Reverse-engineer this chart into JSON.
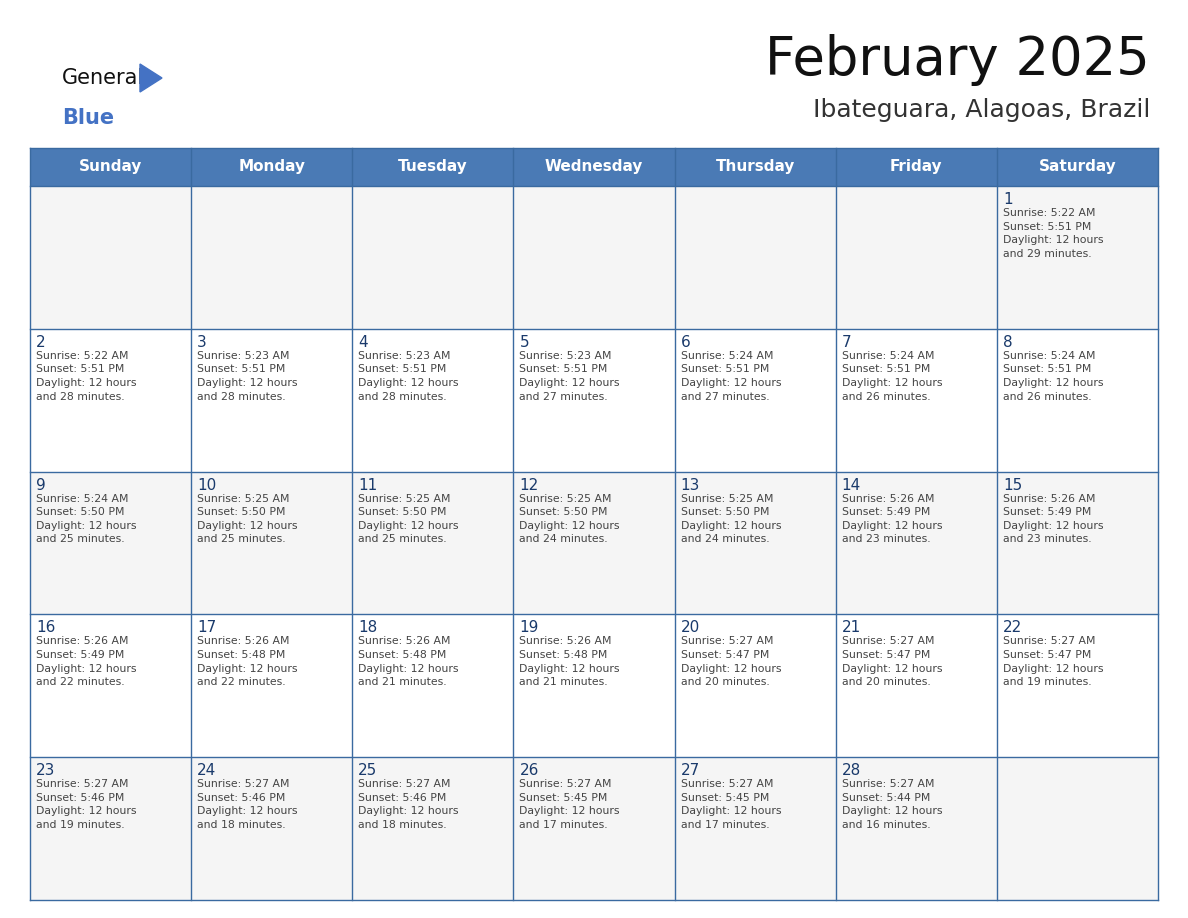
{
  "title": "February 2025",
  "subtitle": "Ibateguara, Alagoas, Brazil",
  "days_of_week": [
    "Sunday",
    "Monday",
    "Tuesday",
    "Wednesday",
    "Thursday",
    "Friday",
    "Saturday"
  ],
  "header_bg": "#4a7ab5",
  "header_text": "#FFFFFF",
  "cell_bg_odd": "#f5f5f5",
  "cell_bg_even": "#ffffff",
  "cell_text": "#333333",
  "day_number_color": "#1a3a6b",
  "border_color": "#3a6aa0",
  "title_color": "#111111",
  "subtitle_color": "#333333",
  "weeks": [
    [
      {
        "day": null,
        "info": null
      },
      {
        "day": null,
        "info": null
      },
      {
        "day": null,
        "info": null
      },
      {
        "day": null,
        "info": null
      },
      {
        "day": null,
        "info": null
      },
      {
        "day": null,
        "info": null
      },
      {
        "day": 1,
        "info": "Sunrise: 5:22 AM\nSunset: 5:51 PM\nDaylight: 12 hours\nand 29 minutes."
      }
    ],
    [
      {
        "day": 2,
        "info": "Sunrise: 5:22 AM\nSunset: 5:51 PM\nDaylight: 12 hours\nand 28 minutes."
      },
      {
        "day": 3,
        "info": "Sunrise: 5:23 AM\nSunset: 5:51 PM\nDaylight: 12 hours\nand 28 minutes."
      },
      {
        "day": 4,
        "info": "Sunrise: 5:23 AM\nSunset: 5:51 PM\nDaylight: 12 hours\nand 28 minutes."
      },
      {
        "day": 5,
        "info": "Sunrise: 5:23 AM\nSunset: 5:51 PM\nDaylight: 12 hours\nand 27 minutes."
      },
      {
        "day": 6,
        "info": "Sunrise: 5:24 AM\nSunset: 5:51 PM\nDaylight: 12 hours\nand 27 minutes."
      },
      {
        "day": 7,
        "info": "Sunrise: 5:24 AM\nSunset: 5:51 PM\nDaylight: 12 hours\nand 26 minutes."
      },
      {
        "day": 8,
        "info": "Sunrise: 5:24 AM\nSunset: 5:51 PM\nDaylight: 12 hours\nand 26 minutes."
      }
    ],
    [
      {
        "day": 9,
        "info": "Sunrise: 5:24 AM\nSunset: 5:50 PM\nDaylight: 12 hours\nand 25 minutes."
      },
      {
        "day": 10,
        "info": "Sunrise: 5:25 AM\nSunset: 5:50 PM\nDaylight: 12 hours\nand 25 minutes."
      },
      {
        "day": 11,
        "info": "Sunrise: 5:25 AM\nSunset: 5:50 PM\nDaylight: 12 hours\nand 25 minutes."
      },
      {
        "day": 12,
        "info": "Sunrise: 5:25 AM\nSunset: 5:50 PM\nDaylight: 12 hours\nand 24 minutes."
      },
      {
        "day": 13,
        "info": "Sunrise: 5:25 AM\nSunset: 5:50 PM\nDaylight: 12 hours\nand 24 minutes."
      },
      {
        "day": 14,
        "info": "Sunrise: 5:26 AM\nSunset: 5:49 PM\nDaylight: 12 hours\nand 23 minutes."
      },
      {
        "day": 15,
        "info": "Sunrise: 5:26 AM\nSunset: 5:49 PM\nDaylight: 12 hours\nand 23 minutes."
      }
    ],
    [
      {
        "day": 16,
        "info": "Sunrise: 5:26 AM\nSunset: 5:49 PM\nDaylight: 12 hours\nand 22 minutes."
      },
      {
        "day": 17,
        "info": "Sunrise: 5:26 AM\nSunset: 5:48 PM\nDaylight: 12 hours\nand 22 minutes."
      },
      {
        "day": 18,
        "info": "Sunrise: 5:26 AM\nSunset: 5:48 PM\nDaylight: 12 hours\nand 21 minutes."
      },
      {
        "day": 19,
        "info": "Sunrise: 5:26 AM\nSunset: 5:48 PM\nDaylight: 12 hours\nand 21 minutes."
      },
      {
        "day": 20,
        "info": "Sunrise: 5:27 AM\nSunset: 5:47 PM\nDaylight: 12 hours\nand 20 minutes."
      },
      {
        "day": 21,
        "info": "Sunrise: 5:27 AM\nSunset: 5:47 PM\nDaylight: 12 hours\nand 20 minutes."
      },
      {
        "day": 22,
        "info": "Sunrise: 5:27 AM\nSunset: 5:47 PM\nDaylight: 12 hours\nand 19 minutes."
      }
    ],
    [
      {
        "day": 23,
        "info": "Sunrise: 5:27 AM\nSunset: 5:46 PM\nDaylight: 12 hours\nand 19 minutes."
      },
      {
        "day": 24,
        "info": "Sunrise: 5:27 AM\nSunset: 5:46 PM\nDaylight: 12 hours\nand 18 minutes."
      },
      {
        "day": 25,
        "info": "Sunrise: 5:27 AM\nSunset: 5:46 PM\nDaylight: 12 hours\nand 18 minutes."
      },
      {
        "day": 26,
        "info": "Sunrise: 5:27 AM\nSunset: 5:45 PM\nDaylight: 12 hours\nand 17 minutes."
      },
      {
        "day": 27,
        "info": "Sunrise: 5:27 AM\nSunset: 5:45 PM\nDaylight: 12 hours\nand 17 minutes."
      },
      {
        "day": 28,
        "info": "Sunrise: 5:27 AM\nSunset: 5:44 PM\nDaylight: 12 hours\nand 16 minutes."
      },
      {
        "day": null,
        "info": null
      }
    ]
  ]
}
